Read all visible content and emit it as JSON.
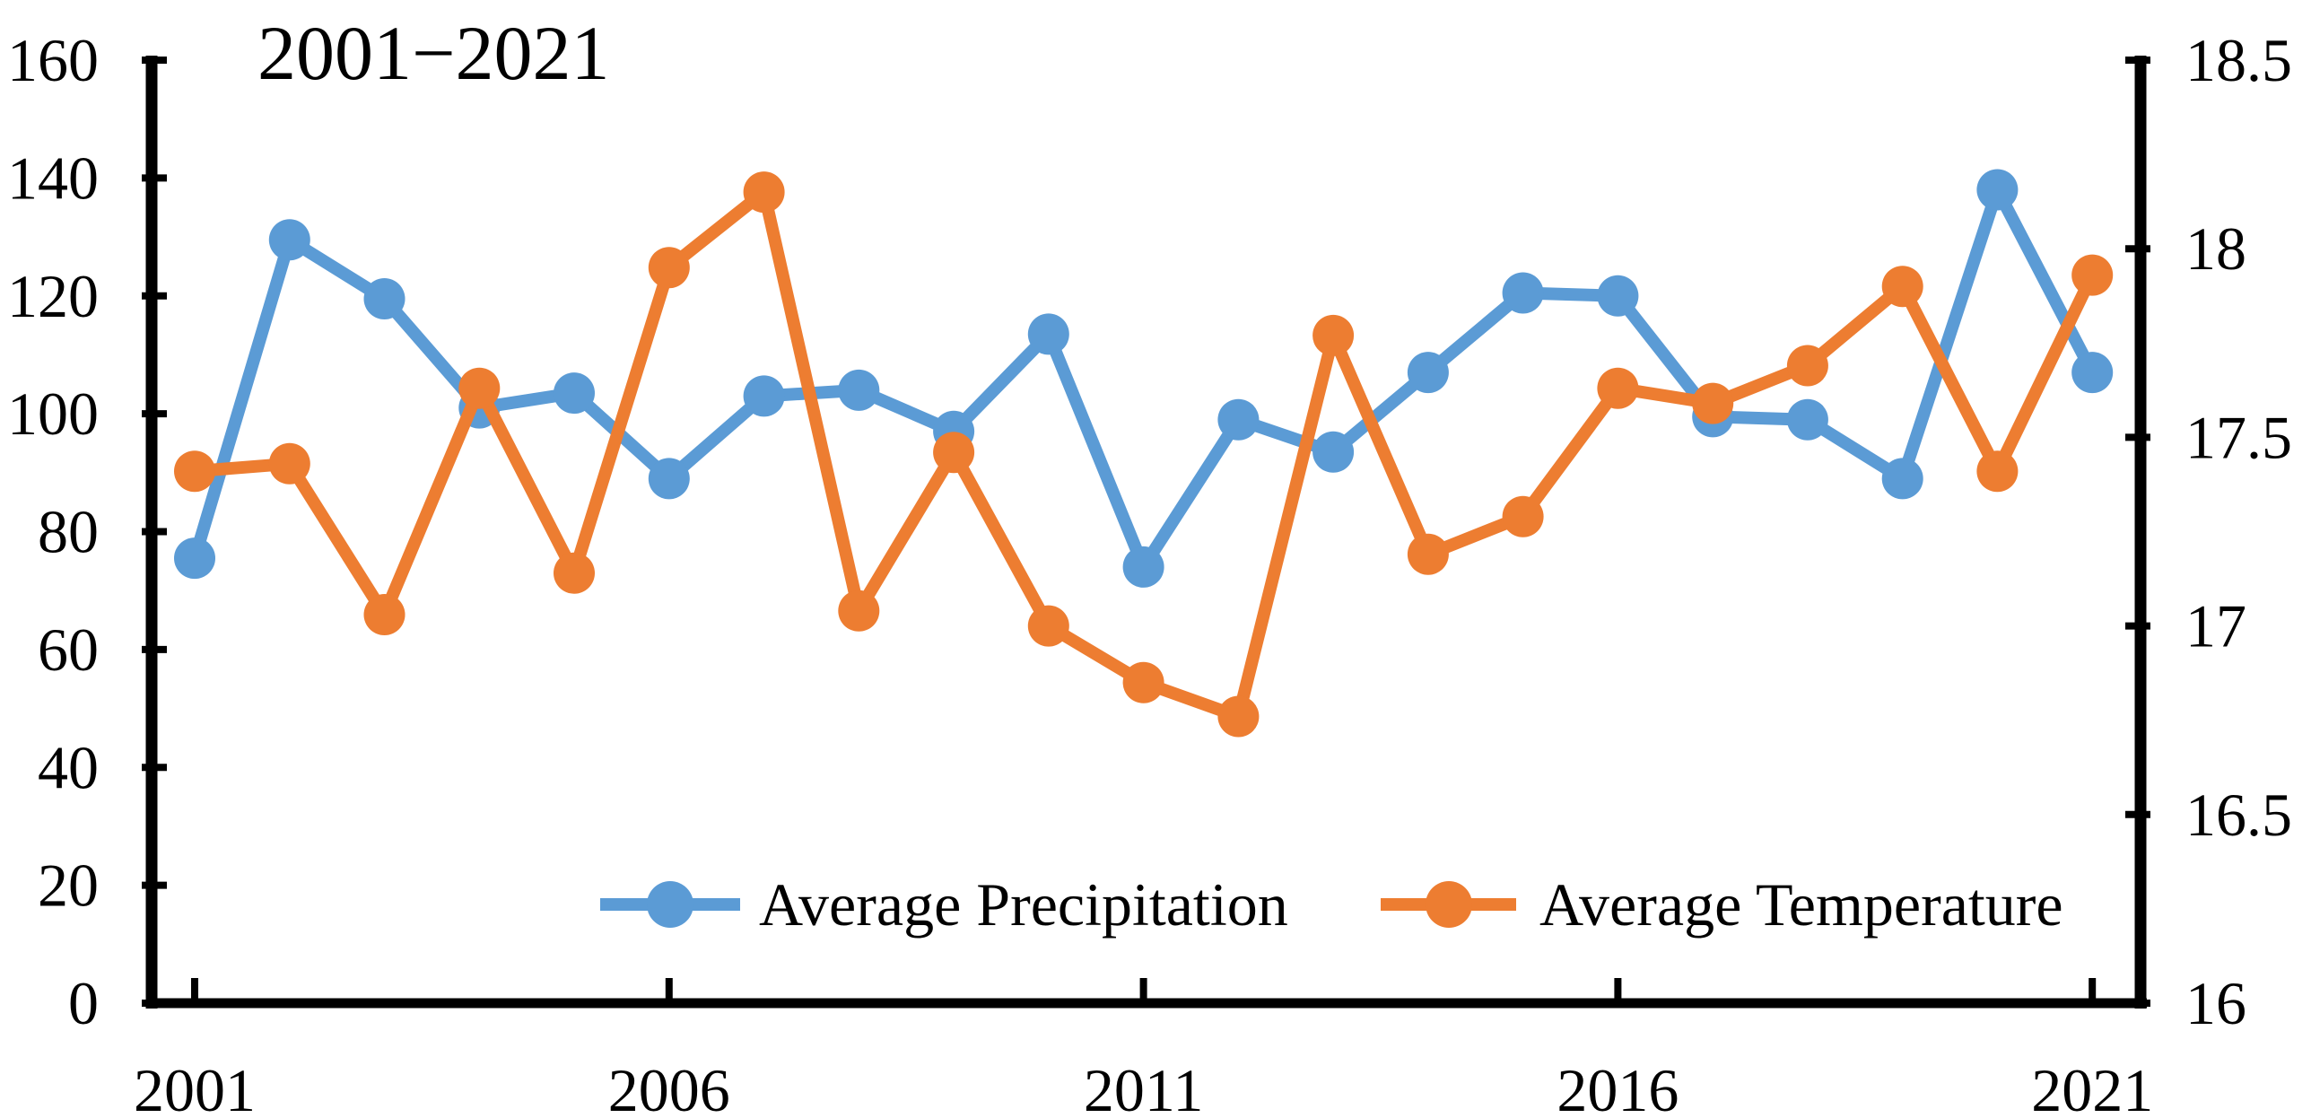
{
  "title": "2001−2021",
  "legend": {
    "items": [
      {
        "label": "Average Precipitation",
        "color": "#5B9BD5"
      },
      {
        "label": "Average Temperature",
        "color": "#ED7D31"
      }
    ]
  },
  "axis_colors": {
    "line": "#000000",
    "text": "#000000"
  },
  "chart_data": {
    "type": "line",
    "title": "2001−2021",
    "x": [
      2001,
      2002,
      2003,
      2004,
      2005,
      2006,
      2007,
      2008,
      2009,
      2010,
      2011,
      2012,
      2013,
      2014,
      2015,
      2016,
      2017,
      2018,
      2019,
      2020,
      2021
    ],
    "x_tick_labels": [
      "2001",
      "2006",
      "2011",
      "2016",
      "2021"
    ],
    "x_tick_years": [
      2001,
      2006,
      2011,
      2016,
      2021
    ],
    "y_left": {
      "min": 0,
      "max": 160,
      "step": 20,
      "tick_labels": [
        "0",
        "20",
        "40",
        "60",
        "80",
        "100",
        "120",
        "140",
        "160"
      ]
    },
    "y_right": {
      "min": 16,
      "max": 18.5,
      "step": 0.5,
      "tick_labels": [
        "16",
        "16.5",
        "17",
        "17.5",
        "18",
        "18.5"
      ]
    },
    "grid": false,
    "legend_position": "inside-bottom",
    "series": [
      {
        "name": "Average Precipitation",
        "axis": "left",
        "color": "#5B9BD5",
        "values": [
          75.5,
          129.5,
          119.5,
          101,
          103.5,
          89,
          103,
          104,
          97,
          113.5,
          74,
          99,
          93.5,
          107,
          120.5,
          120,
          99.5,
          99,
          89,
          138,
          107
        ]
      },
      {
        "name": "Average Temperature",
        "axis": "right",
        "color": "#ED7D31",
        "values": [
          17.41,
          17.43,
          17.03,
          17.63,
          17.14,
          17.95,
          18.15,
          17.04,
          17.46,
          17.0,
          16.85,
          16.76,
          17.77,
          17.19,
          17.29,
          17.63,
          17.59,
          17.69,
          17.9,
          17.41,
          17.93
        ]
      }
    ]
  }
}
